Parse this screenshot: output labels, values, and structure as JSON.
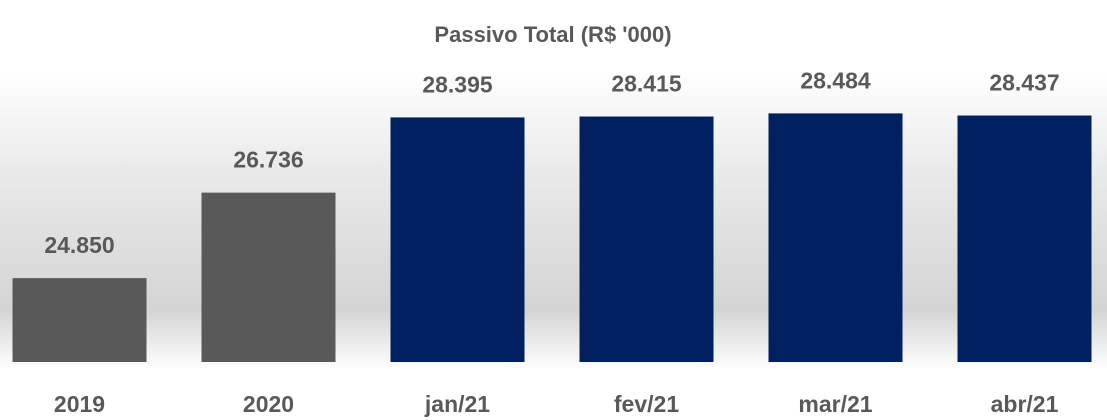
{
  "chart_data": {
    "type": "bar",
    "title": "Passivo Total (R$ '000)",
    "categories": [
      "2019",
      "2020",
      "jan/21",
      "fev/21",
      "mar/21",
      "abr/21"
    ],
    "values": [
      24850,
      26736,
      28395,
      28415,
      28484,
      28437
    ],
    "value_labels": [
      "24.850",
      "26.736",
      "28.395",
      "28.415",
      "28.484",
      "28.437"
    ],
    "colors": [
      "#595959",
      "#595959",
      "#002060",
      "#002060",
      "#002060",
      "#002060"
    ],
    "ylim": [
      23000,
      29000
    ]
  }
}
